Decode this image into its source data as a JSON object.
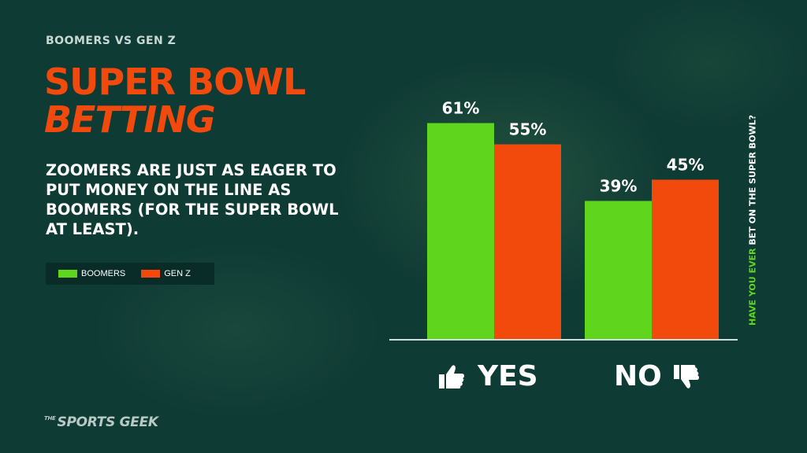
{
  "header": {
    "kicker": "BOOMERS VS GEN Z",
    "title_line1": "SUPER BOWL",
    "title_line2": "BETTING",
    "subtitle": "ZOOMERS ARE JUST AS EAGER TO PUT MONEY ON THE LINE AS BOOMERS (FOR THE SUPER BOWL AT LEAST)."
  },
  "legend": {
    "items": [
      {
        "label": "BOOMERS",
        "color": "#5fd61d"
      },
      {
        "label": "GEN Z",
        "color": "#f24a0c"
      }
    ]
  },
  "side_label": {
    "highlight": "HAVE YOU EVER",
    "rest": " BET ON THE SUPER BOWL?"
  },
  "brand": {
    "prefix": "THE",
    "name": "SPORTS GEEK"
  },
  "chart_data": {
    "type": "bar",
    "categories": [
      "YES",
      "NO"
    ],
    "category_icons": [
      "thumbs-up-icon",
      "thumbs-down-icon"
    ],
    "series": [
      {
        "name": "BOOMERS",
        "values": [
          61,
          39
        ],
        "labels": [
          "61%",
          "39%"
        ],
        "color": "#5fd61d"
      },
      {
        "name": "GEN Z",
        "values": [
          55,
          45
        ],
        "labels": [
          "55%",
          "45%"
        ],
        "color": "#f24a0c"
      }
    ],
    "ylim": [
      0,
      100
    ],
    "xlabel": "",
    "ylabel": "",
    "grid": false,
    "legend_position": "left"
  }
}
